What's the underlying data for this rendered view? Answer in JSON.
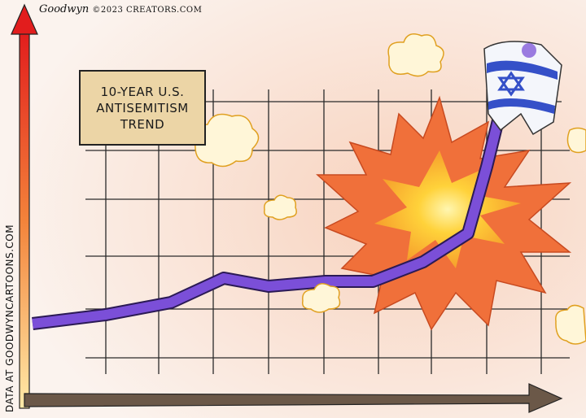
{
  "signature": {
    "artist": "Goodwyn",
    "copyright": "©2023 CREATORS.COM"
  },
  "title_box": {
    "text": "10-YEAR U.S. ANTISEMITISM TREND"
  },
  "y_axis_label": "DATA AT GOODWYNCARTOONS.COM",
  "colors": {
    "trend_line": "#7b4fd8",
    "explosion_outer": "#f0703a",
    "explosion_inner": "#ffd23a",
    "y_axis_top": "#e02020",
    "y_axis_bottom": "#ffe6a0",
    "x_axis": "#6b5848",
    "flag_blue": "#3550c8"
  }
}
